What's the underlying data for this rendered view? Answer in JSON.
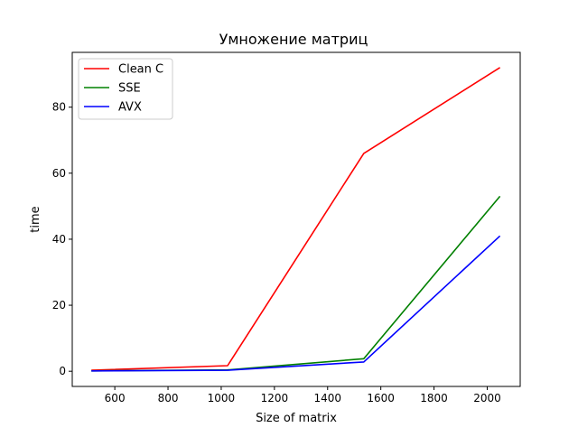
{
  "chart_data": {
    "type": "line",
    "title": "Умножение матриц",
    "xlabel": "Size of matrix",
    "ylabel": "time",
    "x": [
      512,
      1024,
      1536,
      2048
    ],
    "xlim": [
      440,
      2124
    ],
    "ylim": [
      -4.6,
      96.6
    ],
    "xticks": [
      600,
      800,
      1000,
      1200,
      1400,
      1600,
      1800,
      2000
    ],
    "yticks": [
      0,
      20,
      40,
      60,
      80
    ],
    "grid": false,
    "legend_position": "upper-left",
    "series": [
      {
        "name": "Clean C",
        "color": "#ff0000",
        "values": [
          0.3,
          1.7,
          66.0,
          92.0
        ]
      },
      {
        "name": "SSE",
        "color": "#008000",
        "values": [
          0.1,
          0.4,
          3.8,
          53.0
        ]
      },
      {
        "name": "AVX",
        "color": "#0000ff",
        "values": [
          0.1,
          0.3,
          2.8,
          41.0
        ]
      }
    ]
  }
}
